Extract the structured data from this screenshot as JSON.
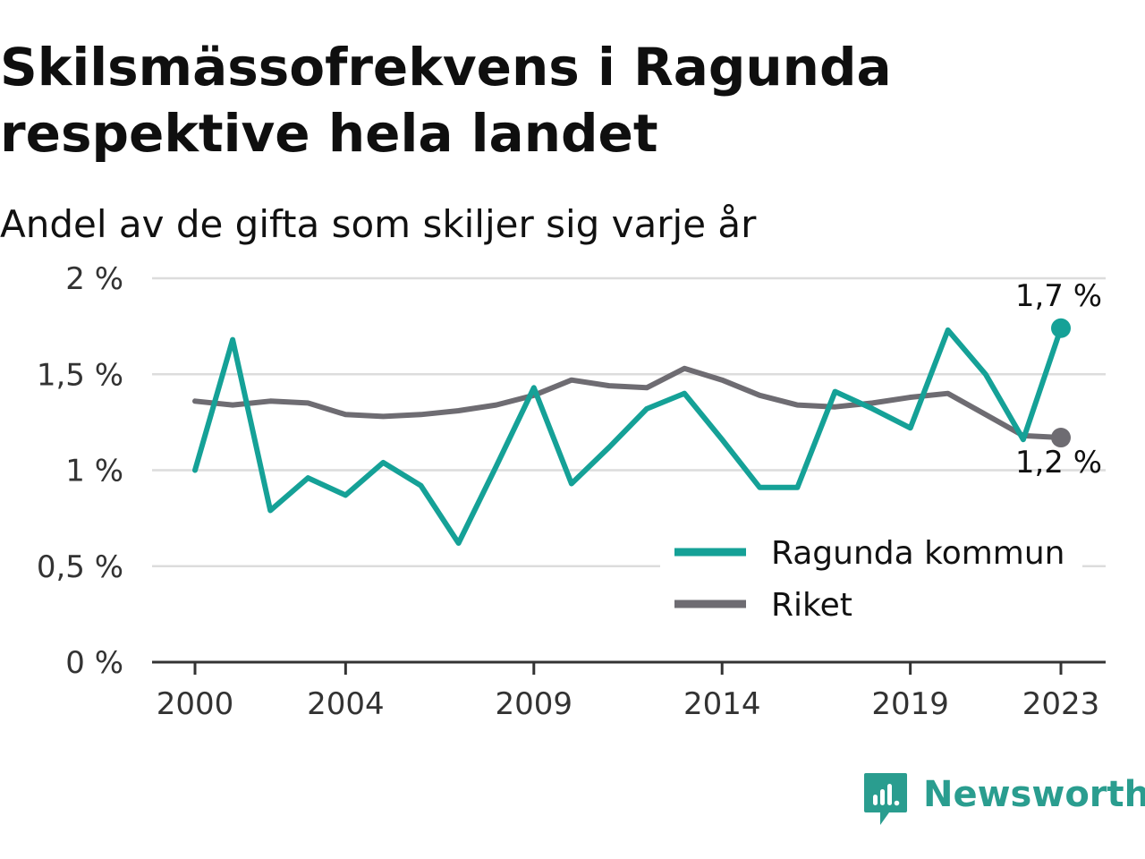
{
  "title_lines": [
    "Skilsmässofrekvens i Ragunda",
    "respektive hela landet"
  ],
  "subtitle": "Andel av de gifta som skiljer sig varje år",
  "brand": {
    "name": "Newsworthy",
    "icon": "newsworthy-logo-icon",
    "color": "#2a9d8f"
  },
  "chart_data": {
    "type": "line",
    "x": [
      2000,
      2001,
      2002,
      2003,
      2004,
      2005,
      2006,
      2007,
      2008,
      2009,
      2010,
      2011,
      2012,
      2013,
      2014,
      2015,
      2016,
      2017,
      2018,
      2019,
      2020,
      2021,
      2022,
      2023
    ],
    "x_ticks": [
      2000,
      2004,
      2009,
      2014,
      2019,
      2023
    ],
    "x_tick_labels": [
      "2000",
      "2004",
      "2009",
      "2014",
      "2019",
      "2023"
    ],
    "y_ticks": [
      0,
      0.5,
      1,
      1.5,
      2
    ],
    "y_tick_labels": [
      "0 %",
      "0,5 %",
      "1 %",
      "1,5 %",
      "2 %"
    ],
    "ylim": [
      0,
      2
    ],
    "grid": true,
    "legend_position": "bottom-right",
    "series": [
      {
        "name": "Ragunda kommun",
        "color": "#15a197",
        "values": [
          1.0,
          1.68,
          0.79,
          0.96,
          0.87,
          1.04,
          0.92,
          0.62,
          1.02,
          1.43,
          0.93,
          1.12,
          1.32,
          1.4,
          1.16,
          0.91,
          0.91,
          1.41,
          1.32,
          1.22,
          1.73,
          1.5,
          1.16,
          1.74
        ],
        "end_label": "1,7 %"
      },
      {
        "name": "Riket",
        "color": "#6e6c72",
        "values": [
          1.36,
          1.34,
          1.36,
          1.35,
          1.29,
          1.28,
          1.29,
          1.31,
          1.34,
          1.39,
          1.47,
          1.44,
          1.43,
          1.53,
          1.47,
          1.39,
          1.34,
          1.33,
          1.35,
          1.38,
          1.4,
          1.29,
          1.18,
          1.17
        ],
        "end_label": "1,2 %"
      }
    ]
  }
}
